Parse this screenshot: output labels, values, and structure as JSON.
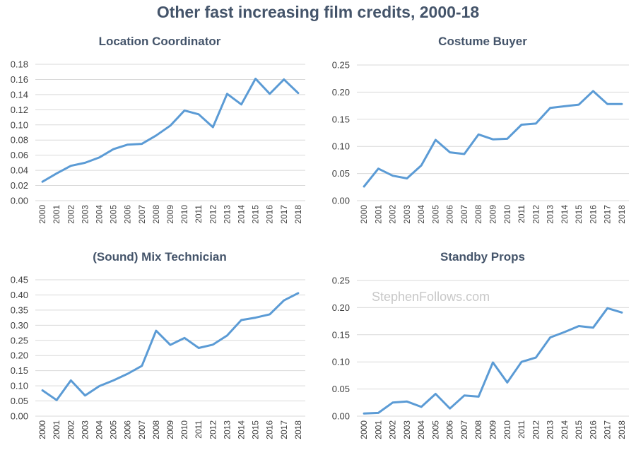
{
  "title": "Other fast increasing film credits, 2000-18",
  "watermark": "StephenFollows.com",
  "chart_data": [
    {
      "type": "line",
      "title": "Location Coordinator",
      "x": [
        "2000",
        "2001",
        "2002",
        "2003",
        "2004",
        "2005",
        "2006",
        "2007",
        "2008",
        "2009",
        "2010",
        "2011",
        "2012",
        "2013",
        "2014",
        "2015",
        "2016",
        "2017",
        "2018"
      ],
      "values": [
        0.025,
        0.036,
        0.046,
        0.05,
        0.057,
        0.068,
        0.074,
        0.075,
        0.086,
        0.099,
        0.119,
        0.114,
        0.097,
        0.141,
        0.127,
        0.161,
        0.141,
        0.16,
        0.142
      ],
      "ylim": [
        0,
        0.18
      ],
      "yticks": [
        "0.00",
        "0.02",
        "0.04",
        "0.06",
        "0.08",
        "0.10",
        "0.12",
        "0.14",
        "0.16",
        "0.18"
      ],
      "color": "#5b9bd5"
    },
    {
      "type": "line",
      "title": "Costume Buyer",
      "x": [
        "2000",
        "2001",
        "2002",
        "2003",
        "2004",
        "2005",
        "2006",
        "2007",
        "2008",
        "2009",
        "2010",
        "2011",
        "2012",
        "2013",
        "2014",
        "2015",
        "2016",
        "2017",
        "2018"
      ],
      "values": [
        0.026,
        0.059,
        0.046,
        0.041,
        0.065,
        0.112,
        0.089,
        0.086,
        0.122,
        0.113,
        0.114,
        0.14,
        0.142,
        0.171,
        0.174,
        0.177,
        0.202,
        0.178,
        0.178
      ],
      "ylim": [
        0,
        0.25
      ],
      "yticks": [
        "0.00",
        "0.05",
        "0.10",
        "0.15",
        "0.20",
        "0.25"
      ],
      "color": "#5b9bd5"
    },
    {
      "type": "line",
      "title": "(Sound) Mix Technician",
      "x": [
        "2000",
        "2001",
        "2002",
        "2003",
        "2004",
        "2005",
        "2006",
        "2007",
        "2008",
        "2009",
        "2010",
        "2011",
        "2012",
        "2013",
        "2014",
        "2015",
        "2016",
        "2017",
        "2018"
      ],
      "values": [
        0.085,
        0.053,
        0.118,
        0.068,
        0.099,
        0.118,
        0.14,
        0.166,
        0.282,
        0.235,
        0.258,
        0.225,
        0.236,
        0.266,
        0.317,
        0.325,
        0.336,
        0.382,
        0.406
      ],
      "ylim": [
        0,
        0.45
      ],
      "yticks": [
        "0.00",
        "0.05",
        "0.10",
        "0.15",
        "0.20",
        "0.25",
        "0.30",
        "0.35",
        "0.40",
        "0.45"
      ],
      "color": "#5b9bd5"
    },
    {
      "type": "line",
      "title": "Standby Props",
      "x": [
        "2000",
        "2001",
        "2002",
        "2003",
        "2004",
        "2005",
        "2006",
        "2007",
        "2008",
        "2009",
        "2010",
        "2011",
        "2012",
        "2013",
        "2014",
        "2015",
        "2016",
        "2017",
        "2018"
      ],
      "values": [
        0.005,
        0.006,
        0.025,
        0.027,
        0.017,
        0.041,
        0.014,
        0.038,
        0.036,
        0.099,
        0.062,
        0.1,
        0.108,
        0.145,
        0.155,
        0.166,
        0.163,
        0.199,
        0.191
      ],
      "ylim": [
        0,
        0.25
      ],
      "yticks": [
        "0.00",
        "0.05",
        "0.10",
        "0.15",
        "0.20",
        "0.25"
      ],
      "color": "#5b9bd5"
    }
  ]
}
